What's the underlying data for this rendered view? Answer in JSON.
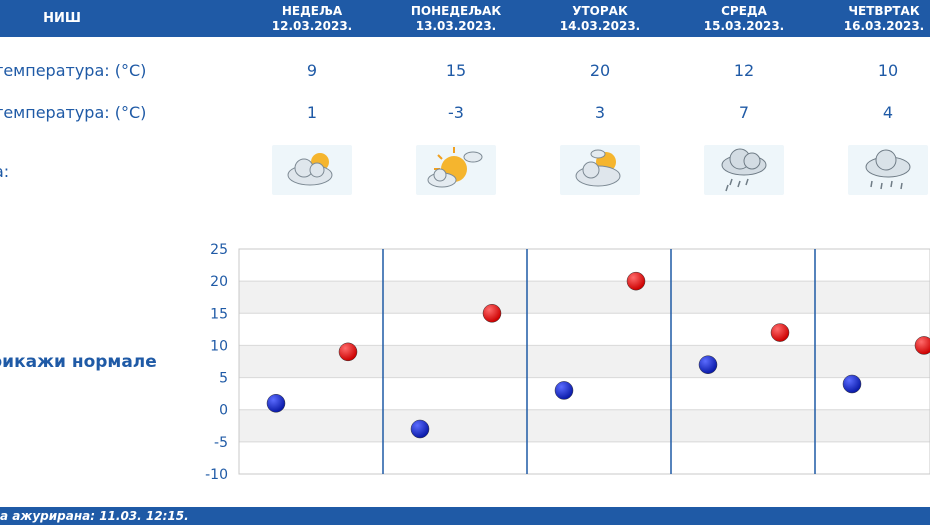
{
  "city": "НИШ",
  "days": [
    {
      "name": "НЕДЕЉА",
      "date": "12.03.2023.",
      "max": "9",
      "min": "1",
      "icon": "partly-cloudy-icon"
    },
    {
      "name": "ПОНЕДЕЉАК",
      "date": "13.03.2023.",
      "max": "15",
      "min": "-3",
      "icon": "sun-cloud-icon"
    },
    {
      "name": "УТОРАК",
      "date": "14.03.2023.",
      "max": "20",
      "min": "3",
      "icon": "partly-cloudy-icon"
    },
    {
      "name": "СРЕДА",
      "date": "15.03.2023.",
      "max": "12",
      "min": "7",
      "icon": "cloud-rain-icon"
    },
    {
      "name": "ЧЕТВРТАК",
      "date": "16.03.2023.",
      "max": "10",
      "min": "4",
      "icon": "cloud-rain-icon"
    }
  ],
  "labels": {
    "max_temp": "температура: (°C)",
    "min_temp": "температура: (°C)",
    "weather": "а:"
  },
  "show_normals": "рикажи нормале",
  "footer": "а ажурирана:  11.03.  12:15.",
  "colors": {
    "header": "#1f5aa6",
    "max_marker": "#cc0000",
    "min_marker": "#0a1aa8"
  },
  "chart_data": {
    "type": "scatter",
    "categories": [
      "12.03.2023.",
      "13.03.2023.",
      "14.03.2023.",
      "15.03.2023.",
      "16.03.2023."
    ],
    "series": [
      {
        "values": [
          1,
          -3,
          3,
          7,
          4
        ],
        "color": "#0a1aa8"
      },
      {
        "values": [
          9,
          15,
          20,
          12,
          10
        ],
        "color": "#cc0000"
      }
    ],
    "ylim": [
      -10,
      25
    ],
    "yticks": [
      25,
      20,
      15,
      10,
      5,
      0,
      -5,
      -10
    ],
    "grid": true
  }
}
